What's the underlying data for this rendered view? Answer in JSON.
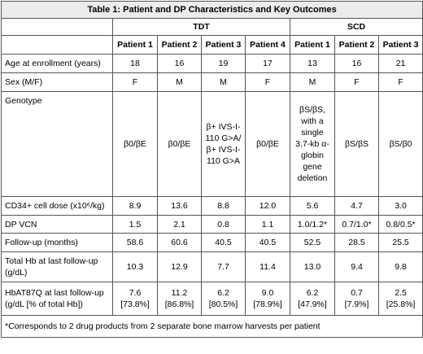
{
  "title": "Table 1: Patient and DP Characteristics and Key Outcomes",
  "groups": {
    "tdt": "TDT",
    "scd": "SCD"
  },
  "patients": [
    "Patient 1",
    "Patient 2",
    "Patient 3",
    "Patient 4",
    "Patient 1",
    "Patient 2",
    "Patient 3"
  ],
  "rows": [
    {
      "label": "Age at enrollment (years)",
      "values": [
        "18",
        "16",
        "19",
        "17",
        "13",
        "16",
        "21"
      ]
    },
    {
      "label": "Sex (M/F)",
      "values": [
        "F",
        "M",
        "M",
        "F",
        "M",
        "F",
        "F"
      ]
    },
    {
      "label": "Genotype",
      "values": [
        "β0/βE",
        "β0/βE",
        "β+ IVS-I-110 G>A/β+ IVS-I-110 G>A",
        "β0/βE",
        "βS/βS, with a single 3.7-kb α-globin gene deletion",
        "βS/βS",
        "βS/β0"
      ]
    },
    {
      "label": "CD34+ cell dose (x10⁶/kg)",
      "values": [
        "8.9",
        "13.6",
        "8.8",
        "12.0",
        "5.6",
        "4.7",
        "3.0"
      ]
    },
    {
      "label": "DP VCN",
      "values": [
        "1.5",
        "2.1",
        "0.8",
        "1.1",
        "1.0/1.2*",
        "0.7/1.0*",
        "0.8/0.5*"
      ]
    },
    {
      "label": "Follow-up (months)",
      "values": [
        "58.6",
        "60.6",
        "40.5",
        "40.5",
        "52.5",
        "28.5",
        "25.5"
      ]
    },
    {
      "label": "Total Hb at last follow-up (g/dL)",
      "values": [
        "10.3",
        "12.9",
        "7.7",
        "11.4",
        "13.0",
        "9.4",
        "9.8"
      ]
    },
    {
      "label": "HbAT87Q at last follow-up (g/dL [% of total Hb])",
      "values": [
        "7.6 [73.8%]",
        "11.2 [86.8%]",
        "6.2 [80.5%]",
        "9.0 [78.9%]",
        "6.2 [47.9%]",
        "0.7 [7.9%]",
        "2.5 [25.8%]"
      ]
    }
  ],
  "footnote": "*Corresponds to 2 drug products from 2 separate bone marrow harvests per patient"
}
